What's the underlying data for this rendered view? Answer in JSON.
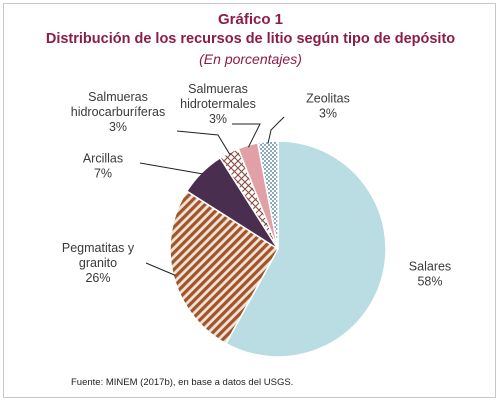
{
  "chart_data": {
    "type": "pie",
    "title": "Gráfico 1",
    "subtitle": "Distribución de los recursos de litio según tipo de depósito",
    "unit_note": "(En porcentajes)",
    "slices": [
      {
        "label": [
          "Salares"
        ],
        "value": 58,
        "value_label": "58%",
        "color": "#b9dde3"
      },
      {
        "label": [
          "Pegmatitas y",
          "granito"
        ],
        "value": 26,
        "value_label": "26%",
        "color": "#a0552a"
      },
      {
        "label": [
          "Arcillas"
        ],
        "value": 7,
        "value_label": "7%",
        "color": "#4a2e4f"
      },
      {
        "label": [
          "Salmueras",
          "hidrocarburíferas"
        ],
        "value": 3,
        "value_label": "3%",
        "color": "#8b4a3e"
      },
      {
        "label": [
          "Salmueras",
          "hidrotermales"
        ],
        "value": 3,
        "value_label": "3%",
        "color": "#e0a0a6"
      },
      {
        "label": [
          "Zeolitas"
        ],
        "value": 3,
        "value_label": "3%",
        "color": "#3b6e8f"
      }
    ],
    "source": "Fuente: MINEM (2017b), en base a datos del USGS."
  }
}
